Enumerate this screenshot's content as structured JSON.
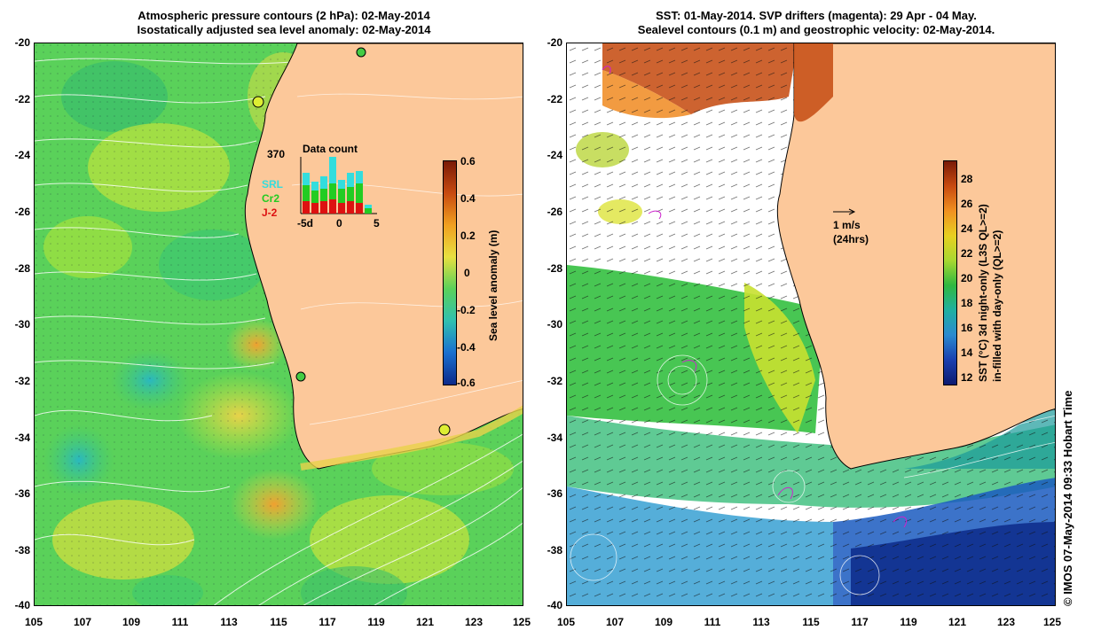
{
  "left_panel": {
    "title_line1": "Atmospheric pressure contours (2 hPa): 02-May-2014",
    "title_line2": "Isostatically adjusted sea level anomaly: 02-May-2014",
    "colorbar_label": "Sea level anomaly (m)",
    "colorbar_ticks": [
      "0.6",
      "0.4",
      "0.2",
      "0",
      "-0.2",
      "-0.4",
      "-0.6"
    ],
    "inset": {
      "max_label": "370",
      "title": "Data count",
      "legend": [
        "SRL",
        "Cr2",
        "J-2"
      ],
      "legend_colors": [
        "#33dddd",
        "#22cc22",
        "#dd1111"
      ],
      "x_ticks": [
        "-5d",
        "0",
        "5"
      ]
    }
  },
  "right_panel": {
    "title_line1": "SST: 01-May-2014. SVP drifters (magenta): 29 Apr - 04 May.",
    "title_line2": "Sealevel contours (0.1 m) and geostrophic velocity: 02-May-2014.",
    "colorbar_label_line1": "SST (°C)  3d night-only (L3S QL>=2)",
    "colorbar_label_line2": "in-filled with day-only (QL>=2)",
    "colorbar_ticks": [
      "28",
      "26",
      "24",
      "22",
      "20",
      "18",
      "16",
      "14",
      "12"
    ],
    "velocity_scale": "1 m/s",
    "velocity_note": "(24hrs)"
  },
  "y_ticks": [
    "-20",
    "-22",
    "-24",
    "-26",
    "-28",
    "-30",
    "-32",
    "-34",
    "-36",
    "-38",
    "-40"
  ],
  "x_ticks": [
    "105",
    "107",
    "109",
    "111",
    "113",
    "115",
    "117",
    "119",
    "121",
    "123",
    "125"
  ],
  "credit": "© IMOS 07-May-2014 09:33 Hobart Time",
  "chart_data": {
    "type": "map",
    "panels": [
      {
        "name": "sea level anomaly",
        "xlim": [
          105,
          125
        ],
        "ylim": [
          -40,
          -20
        ],
        "colorbar_range": [
          -0.6,
          0.6
        ]
      },
      {
        "name": "sst",
        "xlim": [
          105,
          125
        ],
        "ylim": [
          -40,
          -20
        ],
        "colorbar_range": [
          11,
          29
        ]
      }
    ]
  }
}
